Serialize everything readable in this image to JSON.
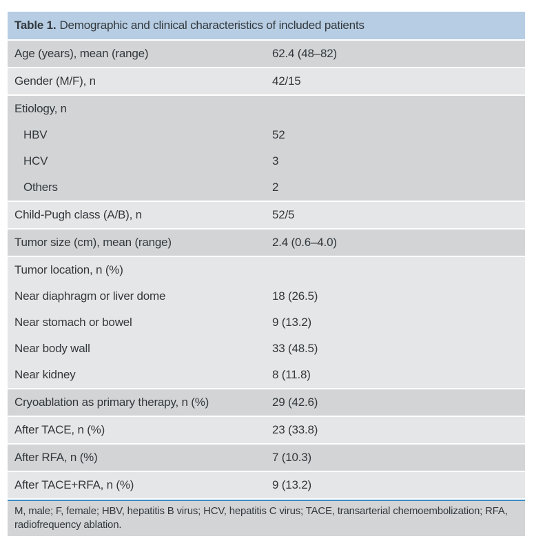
{
  "table": {
    "label": "Table 1.",
    "title": "Demographic and clinical characteristics of included patients",
    "rows": [
      {
        "label": "Age (years), mean (range)",
        "value": "62.4 (48–82)"
      },
      {
        "label": "Gender (M/F), n",
        "value": "42/15"
      },
      {
        "label": "Etiology, n",
        "value": ""
      },
      {
        "label": "HBV",
        "value": "52"
      },
      {
        "label": "HCV",
        "value": "3"
      },
      {
        "label": "Others",
        "value": "2"
      },
      {
        "label": "Child-Pugh class (A/B), n",
        "value": "52/5"
      },
      {
        "label": "Tumor size (cm), mean (range)",
        "value": "2.4 (0.6–4.0)"
      },
      {
        "label": "Tumor location, n (%)",
        "value": ""
      },
      {
        "label": "Near diaphragm or liver dome",
        "value": "18 (26.5)"
      },
      {
        "label": "Near stomach or bowel",
        "value": "9 (13.2)"
      },
      {
        "label": "Near body wall",
        "value": "33 (48.5)"
      },
      {
        "label": "Near kidney",
        "value": "8 (11.8)"
      },
      {
        "label": "Cryoablation as primary therapy, n (%)",
        "value": "29 (42.6)"
      },
      {
        "label": "After TACE, n (%)",
        "value": "23 (33.8)"
      },
      {
        "label": "After RFA, n (%)",
        "value": "7 (10.3)"
      },
      {
        "label": "After TACE+RFA, n (%)",
        "value": "9 (13.2)"
      }
    ],
    "footnote_line1": "M, male; F, female; HBV, hepatitis B virus; HCV, hepatitis C virus; TACE, transarterial chemoembolization; RFA,",
    "footnote_line2": "radiofrequency ablation.",
    "colors": {
      "header_blue": "#b6cde3",
      "row_dark": "#d2d4d6",
      "row_light": "#e5e6e7",
      "rule_blue": "#3c8dc4",
      "text": "#33383c"
    }
  }
}
